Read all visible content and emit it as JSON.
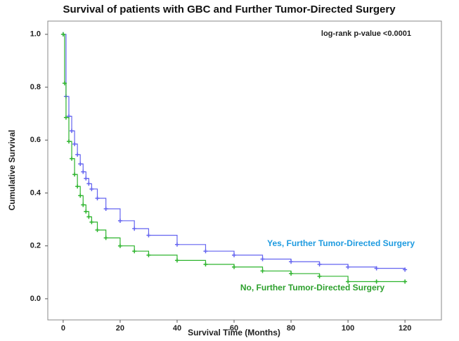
{
  "chart_data": {
    "type": "step",
    "title": "Survival of patients with GBC and Further Tumor-Directed Surgery",
    "annotation": "log-rank p-value <0.0001",
    "x_label": "Survival Time (Months)",
    "y_label": "Cumulative Survival",
    "xlim": [
      -5.4,
      132.8
    ],
    "ylim": [
      -0.08,
      1.05
    ],
    "xticks": [
      0,
      20,
      40,
      60,
      80,
      100,
      120
    ],
    "yticks": [
      {
        "value": 0,
        "label": "0.0"
      },
      {
        "value": 0.2,
        "label": "0.2"
      },
      {
        "value": 0.4,
        "label": "0.4"
      },
      {
        "value": 0.6,
        "label": "0.6"
      },
      {
        "value": 0.8,
        "label": "0.8"
      },
      {
        "value": 1,
        "label": "1.0"
      }
    ],
    "series": [
      {
        "name": "Yes, Further Tumor-Directed Surgery",
        "color": "#6464f0",
        "label_color": "#1e9be0",
        "x": [
          0,
          1,
          2,
          3,
          4,
          5,
          6,
          7,
          8,
          9,
          10,
          12,
          15,
          20,
          25,
          30,
          40,
          50,
          60,
          70,
          80,
          90,
          100,
          110,
          120
        ],
        "values": [
          1.0,
          0.765,
          0.69,
          0.635,
          0.585,
          0.545,
          0.51,
          0.48,
          0.455,
          0.435,
          0.415,
          0.38,
          0.34,
          0.295,
          0.265,
          0.24,
          0.205,
          0.18,
          0.165,
          0.15,
          0.14,
          0.13,
          0.12,
          0.115,
          0.11
        ]
      },
      {
        "name": "No, Further Tumor-Directed Surgery",
        "color": "#2db42d",
        "label_color": "#2da02d",
        "x": [
          0,
          0.5,
          1,
          2,
          3,
          4,
          5,
          6,
          7,
          8,
          9,
          10,
          12,
          15,
          20,
          25,
          30,
          40,
          50,
          60,
          70,
          80,
          90,
          100,
          110,
          120
        ],
        "values": [
          1.0,
          0.815,
          0.685,
          0.595,
          0.53,
          0.47,
          0.425,
          0.39,
          0.355,
          0.33,
          0.31,
          0.29,
          0.26,
          0.23,
          0.2,
          0.18,
          0.165,
          0.145,
          0.13,
          0.12,
          0.105,
          0.095,
          0.085,
          0.065,
          0.065,
          0.065
        ]
      }
    ]
  }
}
